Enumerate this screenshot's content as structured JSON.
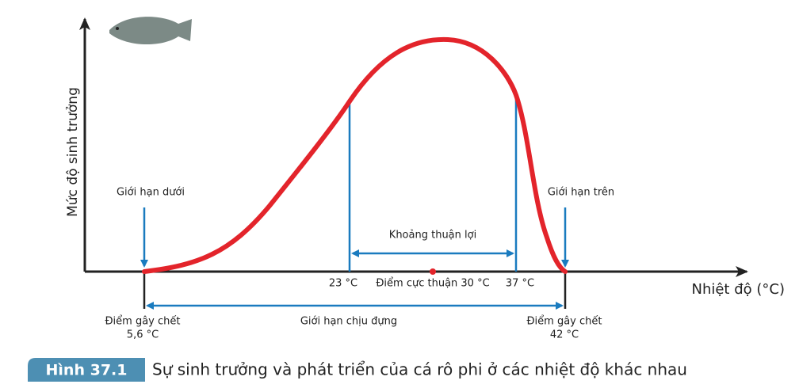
{
  "axes": {
    "y_label": "Mức độ sinh trưởng",
    "x_label": "Nhiệt độ (°C)"
  },
  "labels": {
    "lower_limit": "Giới hạn dưới",
    "upper_limit": "Giới hạn trên",
    "favorable_range": "Khoảng thuận lợi",
    "t23": "23 °C",
    "optimum": "Điểm cực thuận 30 °C",
    "t37": "37 °C",
    "lethal_low": [
      "Điểm gây chết",
      "5,6 °C"
    ],
    "tolerance": "Giới hạn chịu đựng",
    "lethal_high": [
      "Điểm gây chết",
      "42 °C"
    ]
  },
  "caption": {
    "badge": "Hình 37.1",
    "text": "Sự sinh trưởng và phát triển của cá rô phi ở các nhiệt độ khác nhau"
  }
}
